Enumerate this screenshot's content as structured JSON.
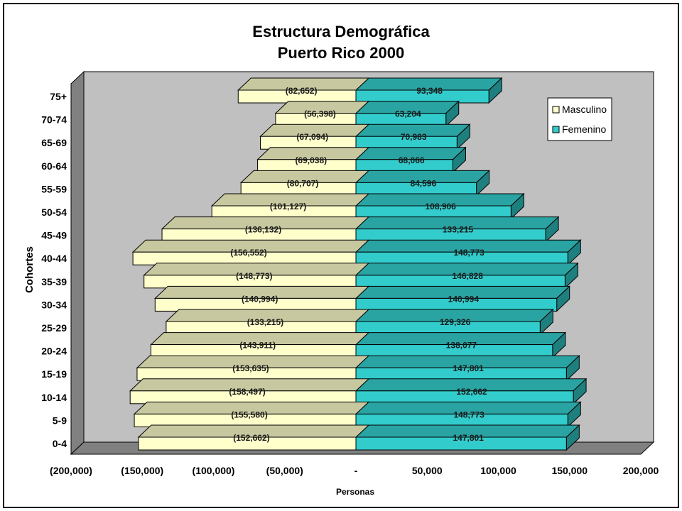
{
  "chart_data": {
    "type": "bar",
    "orientation": "horizontal",
    "style": "population-pyramid-3d",
    "title": "Estructura Demográfica",
    "subtitle": "Puerto Rico 2000",
    "xlabel": "Personas",
    "ylabel": "Cohortes",
    "xlim": [
      -200000,
      200000
    ],
    "x_ticks": [
      -200000,
      -150000,
      -100000,
      -50000,
      0,
      50000,
      100000,
      150000,
      200000
    ],
    "x_tick_labels": [
      "(200,000)",
      "(150,000)",
      "(100,000)",
      "(50,000)",
      "-",
      "50,000",
      "100,000",
      "150,000",
      "200,000"
    ],
    "categories": [
      "0-4",
      "5-9",
      "10-14",
      "15-19",
      "20-24",
      "25-29",
      "30-34",
      "35-39",
      "40-44",
      "45-49",
      "50-54",
      "55-59",
      "60-64",
      "65-69",
      "70-74",
      "75+"
    ],
    "series": [
      {
        "name": "Masculino",
        "color": "#FFFFCC",
        "values": [
          -152662,
          -155580,
          -158497,
          -153635,
          -143911,
          -133215,
          -140994,
          -148773,
          -156552,
          -136132,
          -101127,
          -80707,
          -69038,
          -67094,
          -56398,
          -82652
        ],
        "labels": [
          "(152,662)",
          "(155,580)",
          "(158,497)",
          "(153,635)",
          "(143,911)",
          "(133,215)",
          "(140,994)",
          "(148,773)",
          "(156,552)",
          "(136,132)",
          "(101,127)",
          "(80,707)",
          "(69,038)",
          "(67,094)",
          "(56,398)",
          "(82,652)"
        ]
      },
      {
        "name": "Femenino",
        "color": "#33CCCC",
        "values": [
          147801,
          148773,
          152662,
          147801,
          138077,
          129326,
          140994,
          146828,
          148773,
          133215,
          108906,
          84596,
          68066,
          70983,
          63204,
          93348
        ],
        "labels": [
          "147,801",
          "148,773",
          "152,662",
          "147,801",
          "138,077",
          "129,326",
          "140,994",
          "146,828",
          "148,773",
          "133,215",
          "108,906",
          "84,596",
          "68,066",
          "70,983",
          "63,204",
          "93,348"
        ]
      }
    ],
    "legend_position": "top-right",
    "grid": false,
    "colors": {
      "plot_background": "#C0C0C0",
      "side_wall": "#808080",
      "floor": "#808080",
      "male_front": "#FFFFCC",
      "male_top": "#C8C8A0",
      "female_front": "#33CCCC",
      "female_top": "#2AA3A3",
      "female_side": "#1E7F7F"
    }
  }
}
